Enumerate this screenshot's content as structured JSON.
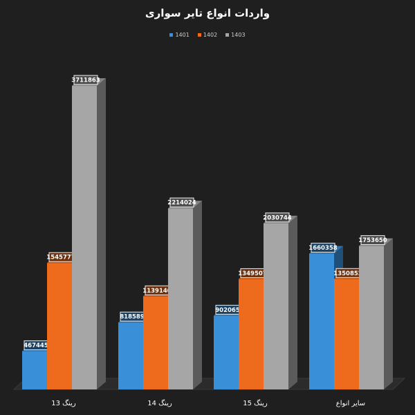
{
  "chart_data": {
    "type": "bar",
    "title": "واردات انواع تایر سواری",
    "categories": [
      "رینگ 13",
      "رینگ 14",
      "رینگ 15",
      "سایر انواع"
    ],
    "series": [
      {
        "name": "1401",
        "color": "#3a8fd9",
        "values": [
          467445,
          818589,
          902065,
          1660358
        ]
      },
      {
        "name": "1402",
        "color": "#ee6a1c",
        "values": [
          1545777,
          1139140,
          1349507,
          1350852
        ]
      },
      {
        "name": "1403",
        "color": "#a6a6a6",
        "values": [
          3711863,
          2214024,
          2030744,
          1753650
        ]
      }
    ],
    "legend_position": "top",
    "grid": false,
    "ylim": [
      0,
      4000000
    ]
  }
}
